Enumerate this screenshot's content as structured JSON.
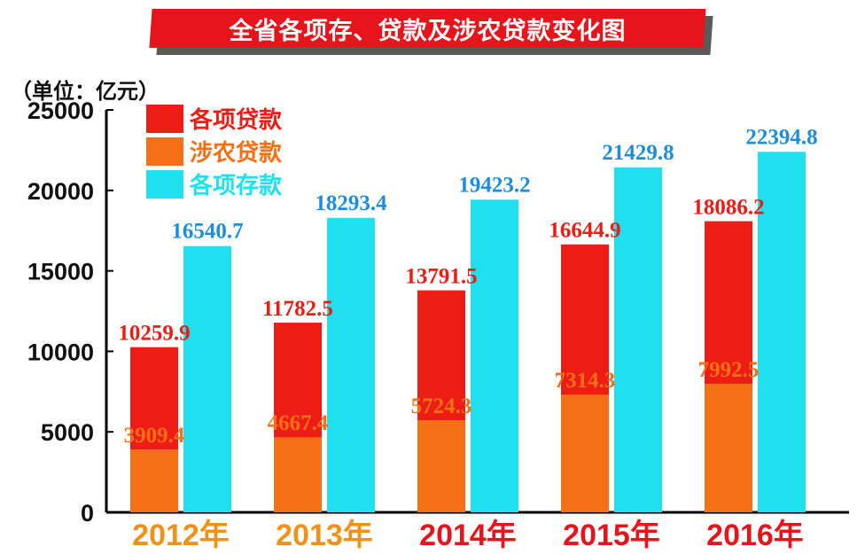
{
  "title": "全省各项存、贷款及涉农贷款变化图",
  "unit_label": "（单位：亿元）",
  "colors": {
    "loans": "#ed1c14",
    "agri": "#f57014",
    "deposits": "#1ee0ee",
    "deposit_label": "#1e8edc",
    "year_orange": "#f39018",
    "year_red": "#e8141b"
  },
  "chart_data": {
    "type": "bar",
    "categories": [
      "2012年",
      "2013年",
      "2014年",
      "2015年",
      "2016年"
    ],
    "series": [
      {
        "name": "各项贷款",
        "values": [
          10259.9,
          11782.5,
          13791.5,
          16644.9,
          18086.2
        ]
      },
      {
        "name": "涉农贷款",
        "values": [
          3909.4,
          4667.4,
          5724.3,
          7314.3,
          7992.5
        ]
      },
      {
        "name": "各项存款",
        "values": [
          16540.7,
          18293.4,
          19423.2,
          21429.8,
          22394.8
        ]
      }
    ],
    "data_labels": {
      "loans": [
        "10259.9",
        "11782.5",
        "13791.5",
        "16644.9",
        "18086.2"
      ],
      "agri": [
        "3909.4",
        "4667.4",
        "5724.3",
        "7314.3",
        "7992.5"
      ],
      "deposits": [
        "16540.7",
        "18293.4",
        "19423.2",
        "21429.8",
        "22394.8"
      ]
    },
    "y_ticks": [
      "0",
      "5000",
      "10000",
      "15000",
      "20000",
      "25000"
    ],
    "ylim": [
      0,
      25000
    ],
    "legend_position": "top-left",
    "grid": false,
    "agri_overlaid_on_loans": true
  }
}
